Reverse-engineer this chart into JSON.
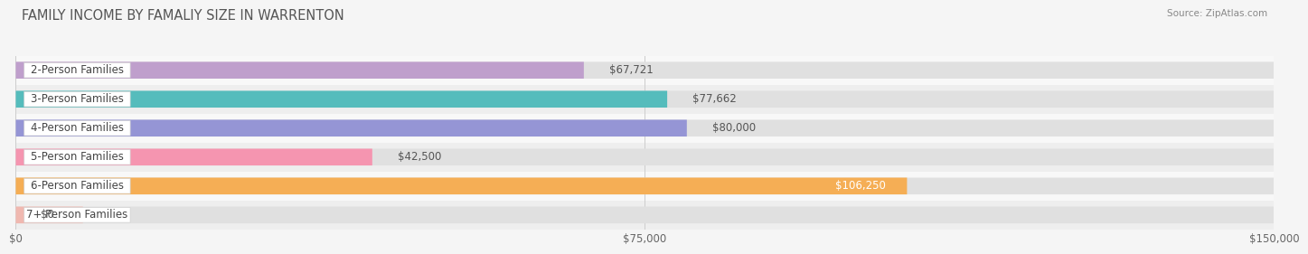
{
  "title": "FAMILY INCOME BY FAMALIY SIZE IN WARRENTON",
  "source": "Source: ZipAtlas.com",
  "categories": [
    "2-Person Families",
    "3-Person Families",
    "4-Person Families",
    "5-Person Families",
    "6-Person Families",
    "7+ Person Families"
  ],
  "values": [
    67721,
    77662,
    80000,
    42500,
    106250,
    0
  ],
  "bar_colors": [
    "#bf9fcc",
    "#55bcbc",
    "#9595d5",
    "#f595b0",
    "#f5ae55",
    "#f0b8b0"
  ],
  "value_labels": [
    "$67,721",
    "$77,662",
    "$80,000",
    "$42,500",
    "$106,250",
    "$0"
  ],
  "label_inside": [
    false,
    false,
    false,
    false,
    true,
    false
  ],
  "xmax": 150000,
  "xtick_labels": [
    "$0",
    "$75,000",
    "$150,000"
  ],
  "title_fontsize": 10.5,
  "label_fontsize": 8.5,
  "value_fontsize": 8.5,
  "track_color": "#e0e0e0",
  "row_bg_even": "#f8f8f8",
  "row_bg_odd": "#eeeeee"
}
